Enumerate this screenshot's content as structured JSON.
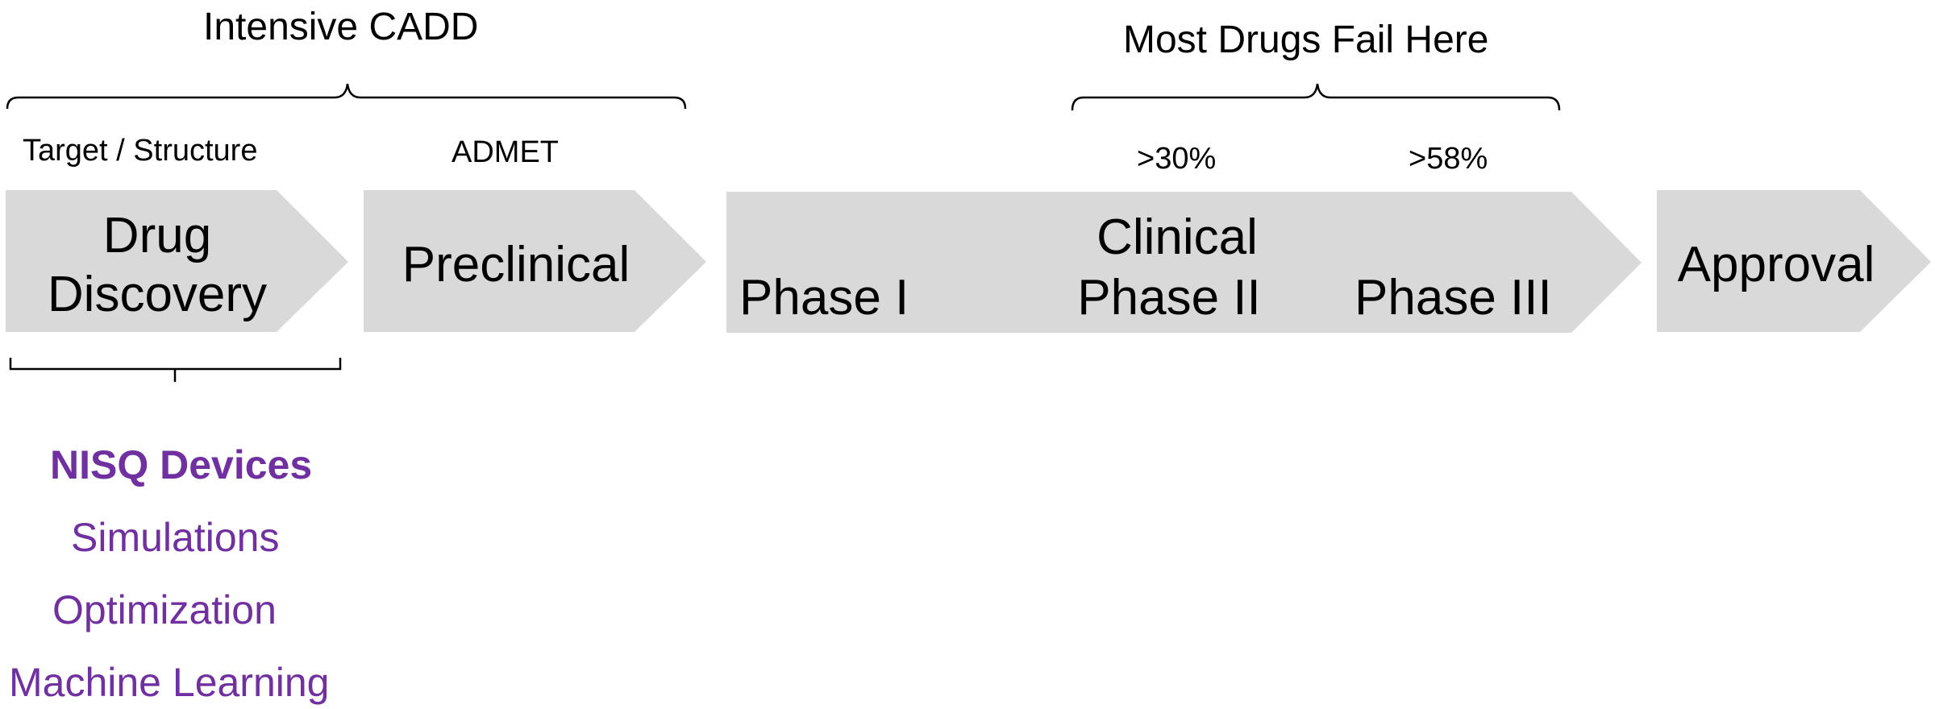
{
  "header": {
    "intensive_cadd": "Intensive CADD",
    "most_drugs_fail": "Most Drugs Fail Here"
  },
  "sublabels": {
    "target_structure": "Target / Structure",
    "admet": "ADMET",
    "phase2_rate": ">30%",
    "phase3_rate": ">58%"
  },
  "stages": {
    "drug_discovery_line1": "Drug",
    "drug_discovery_line2": "Discovery",
    "preclinical": "Preclinical",
    "phase1": "Phase I",
    "clinical": "Clinical",
    "phase2": "Phase II",
    "phase3": "Phase III",
    "approval": "Approval"
  },
  "quantum": {
    "heading": "NISQ Devices",
    "items": [
      "Simulations",
      "Optimization",
      "Machine Learning"
    ]
  },
  "colors": {
    "arrow_fill": "#d9d9d9",
    "accent_purple": "#7030a0",
    "bracket_stroke": "#000000"
  }
}
